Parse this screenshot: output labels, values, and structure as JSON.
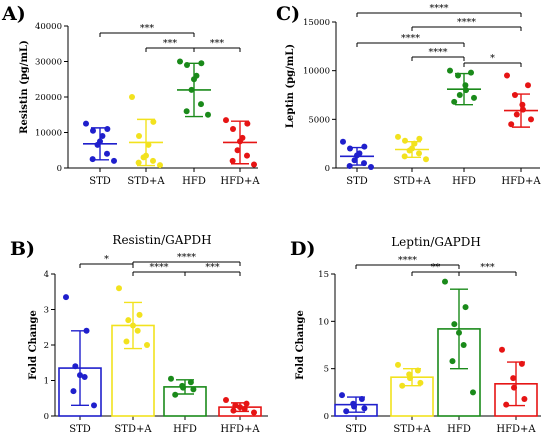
{
  "figure": {
    "background": "#ffffff"
  },
  "chart_data": [
    {
      "panel": "A)",
      "type": "scatter",
      "title": "",
      "ylabel": "Resistin (pg/mL)",
      "categories": [
        "STD",
        "STD+A",
        "HFD",
        "HFD+A"
      ],
      "colors": [
        "#1f1fcc",
        "#f2e21e",
        "#1a8a1a",
        "#e61414"
      ],
      "ylim": [
        0,
        40000
      ],
      "yticks": [
        0,
        10000,
        20000,
        30000,
        40000
      ],
      "ytick_labels": [
        "0",
        "10000",
        "20000",
        "30000",
        "40000"
      ],
      "points": [
        [
          12500,
          11000,
          10500,
          9000,
          7500,
          6500,
          4000,
          2500,
          2000
        ],
        [
          20000,
          13000,
          9000,
          6500,
          3500,
          3000,
          2000,
          1500,
          800
        ],
        [
          30000,
          29500,
          29000,
          26000,
          25000,
          22000,
          18000,
          16000,
          15000
        ],
        [
          13500,
          12500,
          11000,
          8500,
          7500,
          5000,
          3500,
          2000,
          1000
        ]
      ],
      "means": [
        6800,
        7200,
        22000,
        7200
      ],
      "sd": [
        4500,
        6500,
        7500,
        6000
      ],
      "significance": [
        {
          "from": 0,
          "to": 2,
          "label": "***"
        },
        {
          "from": 1,
          "to": 2,
          "label": "***"
        },
        {
          "from": 2,
          "to": 3,
          "label": "***"
        }
      ]
    },
    {
      "panel": "C)",
      "type": "scatter",
      "title": "",
      "ylabel": "Leptin (pg/mL)",
      "categories": [
        "STD",
        "STD+A",
        "HFD",
        "HFD+A"
      ],
      "colors": [
        "#1f1fcc",
        "#f2e21e",
        "#1a8a1a",
        "#e61414"
      ],
      "ylim": [
        0,
        15000
      ],
      "yticks": [
        0,
        5000,
        10000,
        15000
      ],
      "ytick_labels": [
        "0",
        "5000",
        "10000",
        "15000"
      ],
      "points": [
        [
          2700,
          2200,
          2000,
          1500,
          1300,
          800,
          500,
          200,
          100
        ],
        [
          3200,
          3000,
          2800,
          2500,
          2000,
          1800,
          1500,
          1200,
          900
        ],
        [
          10000,
          9800,
          9500,
          8500,
          8000,
          7500,
          7200,
          6800
        ],
        [
          9500,
          8500,
          7500,
          6500,
          6000,
          5500,
          5000,
          4500
        ]
      ],
      "means": [
        1200,
        1900,
        8100,
        5900
      ],
      "sd": [
        900,
        800,
        1600,
        1700
      ],
      "significance": [
        {
          "from": 0,
          "to": 3,
          "label": "****"
        },
        {
          "from": 1,
          "to": 3,
          "label": "****"
        },
        {
          "from": 0,
          "to": 2,
          "label": "****"
        },
        {
          "from": 1,
          "to": 2,
          "label": "****"
        },
        {
          "from": 2,
          "to": 3,
          "label": "*"
        }
      ]
    },
    {
      "panel": "B)",
      "type": "bar",
      "title": "Resistin/GAPDH",
      "ylabel": "Fold Change",
      "categories": [
        "STD",
        "STD+A",
        "HFD",
        "HFD+A"
      ],
      "colors": [
        "#1f1fcc",
        "#f2e21e",
        "#1a8a1a",
        "#e61414"
      ],
      "ylim": [
        0,
        4
      ],
      "yticks": [
        0,
        1,
        2,
        3,
        4
      ],
      "ytick_labels": [
        "0",
        "1",
        "2",
        "3",
        "4"
      ],
      "values": [
        1.35,
        2.55,
        0.82,
        0.25
      ],
      "sd": [
        1.05,
        0.65,
        0.2,
        0.12
      ],
      "points": [
        [
          3.35,
          2.4,
          1.4,
          1.15,
          1.1,
          0.7,
          0.3
        ],
        [
          3.6,
          2.85,
          2.7,
          2.55,
          2.4,
          2.1,
          2.0
        ],
        [
          1.05,
          0.95,
          0.85,
          0.8,
          0.75,
          0.6
        ],
        [
          0.45,
          0.35,
          0.3,
          0.25,
          0.2,
          0.15,
          0.1
        ]
      ],
      "significance": [
        {
          "from": 0,
          "to": 1,
          "label": "*"
        },
        {
          "from": 1,
          "to": 3,
          "label": "****"
        },
        {
          "from": 1,
          "to": 2,
          "label": "****"
        },
        {
          "from": 2,
          "to": 3,
          "label": "***"
        }
      ]
    },
    {
      "panel": "D)",
      "type": "bar",
      "title": "Leptin/GAPDH",
      "ylabel": "Fold Change",
      "categories": [
        "STD",
        "STD+A",
        "HFD",
        "HFD+A"
      ],
      "colors": [
        "#1f1fcc",
        "#f2e21e",
        "#1a8a1a",
        "#e61414"
      ],
      "ylim": [
        0,
        15
      ],
      "yticks": [
        0,
        5,
        10,
        15
      ],
      "ytick_labels": [
        "0",
        "5",
        "10",
        "15"
      ],
      "values": [
        1.2,
        4.1,
        9.2,
        3.4
      ],
      "sd": [
        0.8,
        0.9,
        4.2,
        2.3
      ],
      "points": [
        [
          2.2,
          1.8,
          1.3,
          1.0,
          0.8,
          0.5
        ],
        [
          5.4,
          4.8,
          4.4,
          4.0,
          3.5,
          3.2
        ],
        [
          14.2,
          11.5,
          9.7,
          8.8,
          7.5,
          5.8,
          2.5
        ],
        [
          7.0,
          5.5,
          4.0,
          3.0,
          1.8,
          1.2
        ]
      ],
      "significance": [
        {
          "from": 0,
          "to": 2,
          "label": "****"
        },
        {
          "from": 1,
          "to": 2,
          "label": "**"
        },
        {
          "from": 2,
          "to": 3,
          "label": "***"
        }
      ]
    }
  ]
}
